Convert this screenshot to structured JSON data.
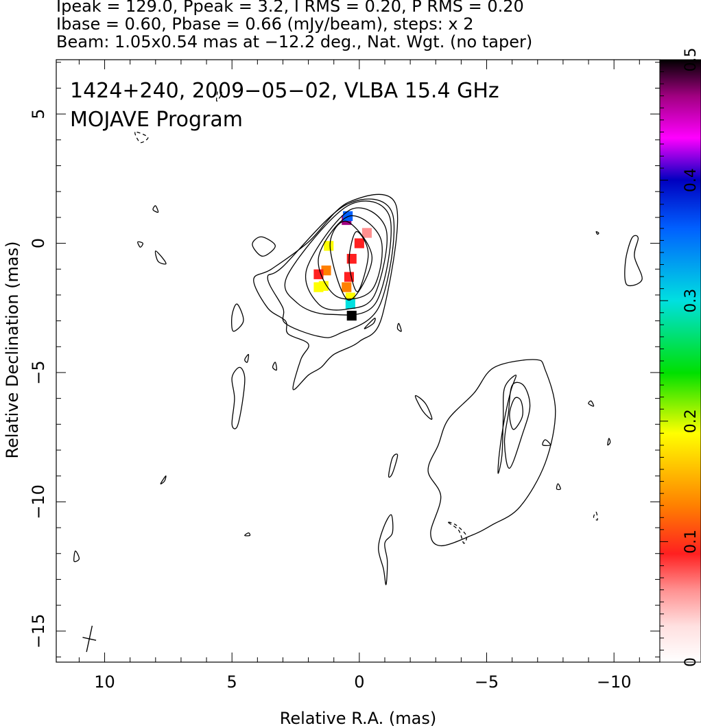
{
  "header": {
    "line1": "Ipeak = 129.0, Ppeak = 3.2, I RMS = 0.20, P RMS = 0.20",
    "line2": "Ibase = 0.60, Pbase = 0.66 (mJy/beam), steps: x 2",
    "line3": "Beam: 1.05x0.54 mas at −12.2 deg., Nat. Wgt. (no taper)"
  },
  "chart_data": {
    "type": "contour",
    "title": "1424+240, 2009−05−02, VLBA 15.4 GHz",
    "subtitle": "MOJAVE Program",
    "xlabel": "Relative R.A. (mas)",
    "ylabel": "Relative Declination (mas)",
    "xlim": [
      11.9,
      -11.8
    ],
    "ylim": [
      -16.2,
      7.1
    ],
    "x_ticks": [
      10,
      5,
      0,
      -5,
      -10
    ],
    "x_tick_labels": [
      "10",
      "5",
      "0",
      "−5",
      "−10"
    ],
    "y_ticks": [
      5,
      0,
      -5,
      -10,
      -15
    ],
    "y_tick_labels": [
      "5",
      "0",
      "−5",
      "−10",
      "−15"
    ],
    "grid": false,
    "colorbar": {
      "min": 0,
      "max": 0.5,
      "ticks": [
        0,
        0.1,
        0.2,
        0.3,
        0.4,
        0.5
      ],
      "tick_labels": [
        "0",
        "0.1",
        "0.2",
        "0.3",
        "0.4",
        "0.5"
      ],
      "colors": [
        "#ffffff",
        "#ffe0e0",
        "#ff9090",
        "#ff2020",
        "#ff8000",
        "#ffff00",
        "#00e000",
        "#00e0e0",
        "#0060ff",
        "#0000c0",
        "#ff00ff",
        "#a00080",
        "#000000"
      ]
    },
    "core_contours": [
      [
        [
          0.07,
          -1.87
        ],
        [
          0.4,
          -0.7
        ],
        [
          0.12,
          0.45
        ],
        [
          -0.35,
          -0.4
        ]
      ],
      [
        [
          0.43,
          -2.2
        ],
        [
          1.15,
          -0.1
        ],
        [
          0.5,
          0.85
        ],
        [
          -0.5,
          -0.55
        ]
      ],
      [
        [
          0.9,
          -2.05
        ],
        [
          1.6,
          -0.55
        ],
        [
          0.4,
          1.05
        ],
        [
          -0.85,
          0.15
        ],
        [
          -0.5,
          -1.8
        ]
      ],
      [
        [
          1.6,
          -2.35
        ],
        [
          2.05,
          -0.95
        ],
        [
          0.35,
          1.3
        ],
        [
          -1.05,
          0.55
        ],
        [
          -0.6,
          -2.0
        ],
        [
          0.5,
          -2.55
        ]
      ],
      [
        [
          2.45,
          -2.3
        ],
        [
          2.8,
          -1.2
        ],
        [
          0.45,
          1.45
        ],
        [
          -1.2,
          1.0
        ],
        [
          -0.65,
          -2.3
        ],
        [
          1.15,
          -2.75
        ]
      ],
      [
        [
          3.0,
          -2.5
        ],
        [
          3.6,
          -1.35
        ],
        [
          3.0,
          -0.9
        ],
        [
          0.5,
          1.5
        ],
        [
          -1.3,
          1.15
        ],
        [
          -0.8,
          -2.4
        ],
        [
          0.8,
          -3.5
        ],
        [
          1.6,
          -3.6
        ],
        [
          2.9,
          -3.1
        ]
      ],
      [
        [
          3.6,
          -2.5
        ],
        [
          4.15,
          -1.4
        ],
        [
          3.45,
          -1.0
        ],
        [
          2.0,
          0.05
        ],
        [
          0.4,
          1.6
        ],
        [
          -1.45,
          1.45
        ],
        [
          -0.9,
          -2.8
        ],
        [
          0.0,
          -3.8
        ],
        [
          1.0,
          -4.3
        ],
        [
          1.5,
          -4.8
        ],
        [
          2.0,
          -5.1
        ],
        [
          2.6,
          -5.65
        ],
        [
          2.3,
          -4.5
        ],
        [
          2.0,
          -3.9
        ],
        [
          2.8,
          -3.5
        ],
        [
          2.9,
          -3.0
        ]
      ]
    ],
    "jet_contours": [
      [
        [
          -4.5,
          -5.8
        ],
        [
          -5.3,
          -4.8
        ],
        [
          -6.9,
          -4.5
        ],
        [
          -7.3,
          -4.9
        ],
        [
          -7.7,
          -6.5
        ],
        [
          -7.3,
          -8.5
        ],
        [
          -6.3,
          -10.2
        ],
        [
          -5.2,
          -10.9
        ],
        [
          -4.4,
          -11.3
        ],
        [
          -3.2,
          -11.7
        ],
        [
          -2.8,
          -11.2
        ],
        [
          -3.2,
          -9.8
        ],
        [
          -2.7,
          -8.8
        ],
        [
          -3.1,
          -7.8
        ],
        [
          -3.5,
          -6.8
        ]
      ],
      [
        [
          -6.15,
          -5.1
        ],
        [
          -5.7,
          -5.6
        ],
        [
          -5.65,
          -6.8
        ],
        [
          -5.6,
          -8.2
        ],
        [
          -5.45,
          -8.9
        ],
        [
          -5.5,
          -8.1
        ],
        [
          -5.7,
          -6.8
        ],
        [
          -5.95,
          -5.7
        ]
      ],
      [
        [
          -6.0,
          -5.5
        ],
        [
          -6.45,
          -5.5
        ],
        [
          -6.7,
          -6.3
        ],
        [
          -6.4,
          -7.4
        ],
        [
          -5.9,
          -8.7
        ],
        [
          -5.7,
          -7.7
        ],
        [
          -5.85,
          -6.6
        ]
      ],
      [
        [
          -6.1,
          -6.0
        ],
        [
          -6.35,
          -6.1
        ],
        [
          -6.4,
          -6.7
        ],
        [
          -6.05,
          -7.2
        ],
        [
          -5.9,
          -6.6
        ]
      ]
    ],
    "island_contours": [
      [
        [
          3.8,
          -0.5
        ],
        [
          3.3,
          -0.1
        ],
        [
          3.85,
          0.25
        ],
        [
          4.2,
          -0.05
        ]
      ],
      [
        [
          4.8,
          -2.35
        ],
        [
          4.55,
          -3.0
        ],
        [
          4.95,
          -3.4
        ],
        [
          5.0,
          -2.8
        ]
      ],
      [
        [
          4.7,
          -4.8
        ],
        [
          5.0,
          -5.2
        ],
        [
          4.9,
          -6.0
        ],
        [
          5.0,
          -7.0
        ],
        [
          4.8,
          -7.1
        ],
        [
          4.6,
          -6.2
        ],
        [
          4.5,
          -5.2
        ]
      ],
      [
        [
          -1.25,
          -10.5
        ],
        [
          -1.3,
          -11.2
        ],
        [
          -1.0,
          -11.6
        ],
        [
          -1.1,
          -12.3
        ],
        [
          -1.05,
          -13.2
        ],
        [
          -0.95,
          -12.6
        ],
        [
          -0.75,
          -11.8
        ],
        [
          -0.95,
          -11.0
        ]
      ],
      [
        [
          -1.5,
          -8.2
        ],
        [
          -1.3,
          -8.9
        ],
        [
          -1.15,
          -9.0
        ],
        [
          -1.3,
          -8.3
        ]
      ],
      [
        [
          -2.2,
          -5.9
        ],
        [
          -2.6,
          -6.2
        ],
        [
          -2.85,
          -6.8
        ],
        [
          -2.5,
          -6.5
        ]
      ],
      [
        [
          -10.5,
          -1.6
        ],
        [
          -11.1,
          -1.4
        ],
        [
          -10.8,
          -0.5
        ],
        [
          -10.95,
          0.2
        ],
        [
          -10.7,
          0.2
        ],
        [
          -10.45,
          -0.7
        ]
      ],
      [
        [
          8.0,
          -0.3
        ],
        [
          7.7,
          -0.6
        ],
        [
          7.6,
          -0.8
        ],
        [
          7.9,
          -0.7
        ]
      ],
      [
        [
          8.0,
          1.45
        ],
        [
          7.9,
          1.2
        ],
        [
          8.1,
          1.3
        ]
      ],
      [
        [
          8.7,
          0.05
        ],
        [
          8.6,
          -0.15
        ],
        [
          8.5,
          0.0
        ]
      ],
      [
        [
          7.6,
          -9.0
        ],
        [
          7.8,
          -9.3
        ],
        [
          7.65,
          -9.2
        ]
      ],
      [
        [
          -0.6,
          -2.9
        ],
        [
          -0.2,
          -3.3
        ],
        [
          -0.55,
          -3.1
        ]
      ],
      [
        [
          -1.55,
          -3.1
        ],
        [
          -1.65,
          -3.4
        ],
        [
          -1.5,
          -3.3
        ]
      ],
      [
        [
          4.35,
          -4.3
        ],
        [
          4.5,
          -4.5
        ],
        [
          4.4,
          -4.6
        ]
      ],
      [
        [
          3.3,
          -4.6
        ],
        [
          3.4,
          -4.8
        ],
        [
          3.25,
          -4.9
        ]
      ],
      [
        [
          -9.1,
          -6.1
        ],
        [
          -9.2,
          -6.3
        ],
        [
          -9.0,
          -6.2
        ]
      ],
      [
        [
          -7.3,
          -7.6
        ],
        [
          -7.5,
          -7.8
        ],
        [
          -7.2,
          -7.8
        ]
      ],
      [
        [
          -7.8,
          -9.3
        ],
        [
          -7.9,
          -9.5
        ],
        [
          -7.75,
          -9.5
        ]
      ],
      [
        [
          11.15,
          -11.9
        ],
        [
          11.0,
          -12.2
        ],
        [
          11.2,
          -12.3
        ]
      ],
      [
        [
          4.35,
          -11.2
        ],
        [
          4.5,
          -11.3
        ],
        [
          4.3,
          -11.3
        ]
      ],
      [
        [
          -9.8,
          -7.55
        ],
        [
          -9.75,
          -7.8
        ],
        [
          -9.85,
          -7.7
        ]
      ],
      [
        [
          -9.35,
          0.35
        ],
        [
          -9.3,
          0.45
        ],
        [
          -9.4,
          0.4
        ]
      ]
    ],
    "negative_contours": [
      [
        [
          8.8,
          4.3
        ],
        [
          8.6,
          3.9
        ],
        [
          8.3,
          4.1
        ]
      ],
      [
        [
          5.6,
          5.5
        ],
        [
          5.55,
          5.9
        ],
        [
          5.4,
          5.8
        ]
      ],
      [
        [
          -3.5,
          -10.8
        ],
        [
          -3.9,
          -11.1
        ],
        [
          -4.1,
          -11.6
        ],
        [
          -4.2,
          -11.3
        ],
        [
          -3.8,
          -10.9
        ]
      ],
      [
        [
          -9.3,
          -10.4
        ],
        [
          -9.35,
          -10.7
        ],
        [
          -9.2,
          -10.6
        ]
      ]
    ],
    "beam": {
      "x": 10.6,
      "y": -15.3,
      "major_mas": 1.05,
      "minor_mas": 0.54,
      "pa_deg": -12.2
    },
    "polarization_pixels": [
      {
        "x": 0.0,
        "y": 0.0,
        "v": 0.09
      },
      {
        "x": -0.3,
        "y": 0.4,
        "v": 0.08
      },
      {
        "x": 0.3,
        "y": -0.6,
        "v": 0.09
      },
      {
        "x": 0.4,
        "y": -1.3,
        "v": 0.11
      },
      {
        "x": 0.5,
        "y": -1.7,
        "v": 0.13
      },
      {
        "x": 0.35,
        "y": -2.1,
        "v": 0.2
      },
      {
        "x": 0.35,
        "y": -2.35,
        "v": 0.3
      },
      {
        "x": 0.3,
        "y": -2.8,
        "v": 0.5
      },
      {
        "x": 0.5,
        "y": 0.9,
        "v": 0.48
      },
      {
        "x": 0.45,
        "y": 1.05,
        "v": 0.38
      },
      {
        "x": 1.2,
        "y": -0.1,
        "v": 0.2
      },
      {
        "x": 1.3,
        "y": -1.05,
        "v": 0.14
      },
      {
        "x": 1.4,
        "y": -1.65,
        "v": 0.2
      },
      {
        "x": 1.6,
        "y": -1.2,
        "v": 0.12
      },
      {
        "x": 1.6,
        "y": -1.7,
        "v": 0.22
      }
    ]
  }
}
